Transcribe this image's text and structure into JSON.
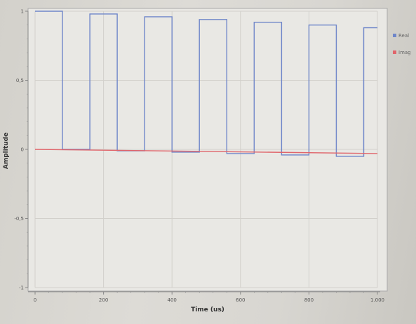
{
  "chart_data": {
    "type": "line",
    "xlabel": "Time (us)",
    "ylabel": "Amplitude",
    "xlim": [
      0,
      1000
    ],
    "ylim": [
      -1,
      1
    ],
    "x_ticks": [
      {
        "value": 0,
        "label": "0"
      },
      {
        "value": 200,
        "label": "200"
      },
      {
        "value": 400,
        "label": "400"
      },
      {
        "value": 600,
        "label": "600"
      },
      {
        "value": 800,
        "label": "800"
      },
      {
        "value": 1000,
        "label": "1.000"
      }
    ],
    "y_ticks": [
      {
        "value": 1,
        "label": "1"
      },
      {
        "value": 0.5,
        "label": "0,5"
      },
      {
        "value": 0,
        "label": "0"
      },
      {
        "value": -0.5,
        "label": "-0,5"
      },
      {
        "value": -1,
        "label": "-1"
      }
    ],
    "grid": true,
    "legend_position": "top-right",
    "series": [
      {
        "name": "Real",
        "color": "#6f86c9",
        "x": [
          0,
          80,
          80,
          160,
          160,
          240,
          240,
          320,
          320,
          400,
          400,
          480,
          480,
          560,
          560,
          640,
          640,
          720,
          720,
          800,
          800,
          880,
          880,
          960,
          960,
          1000
        ],
        "y": [
          1.0,
          1.0,
          0.0,
          0.0,
          0.98,
          0.98,
          -0.01,
          -0.01,
          0.96,
          0.96,
          -0.02,
          -0.02,
          0.94,
          0.94,
          -0.03,
          -0.03,
          0.92,
          0.92,
          -0.04,
          -0.04,
          0.9,
          0.9,
          -0.05,
          -0.05,
          0.88,
          0.88
        ]
      },
      {
        "name": "Imag",
        "color": "#e0656b",
        "x": [
          0,
          1000
        ],
        "y": [
          0.0,
          -0.03
        ]
      }
    ]
  }
}
